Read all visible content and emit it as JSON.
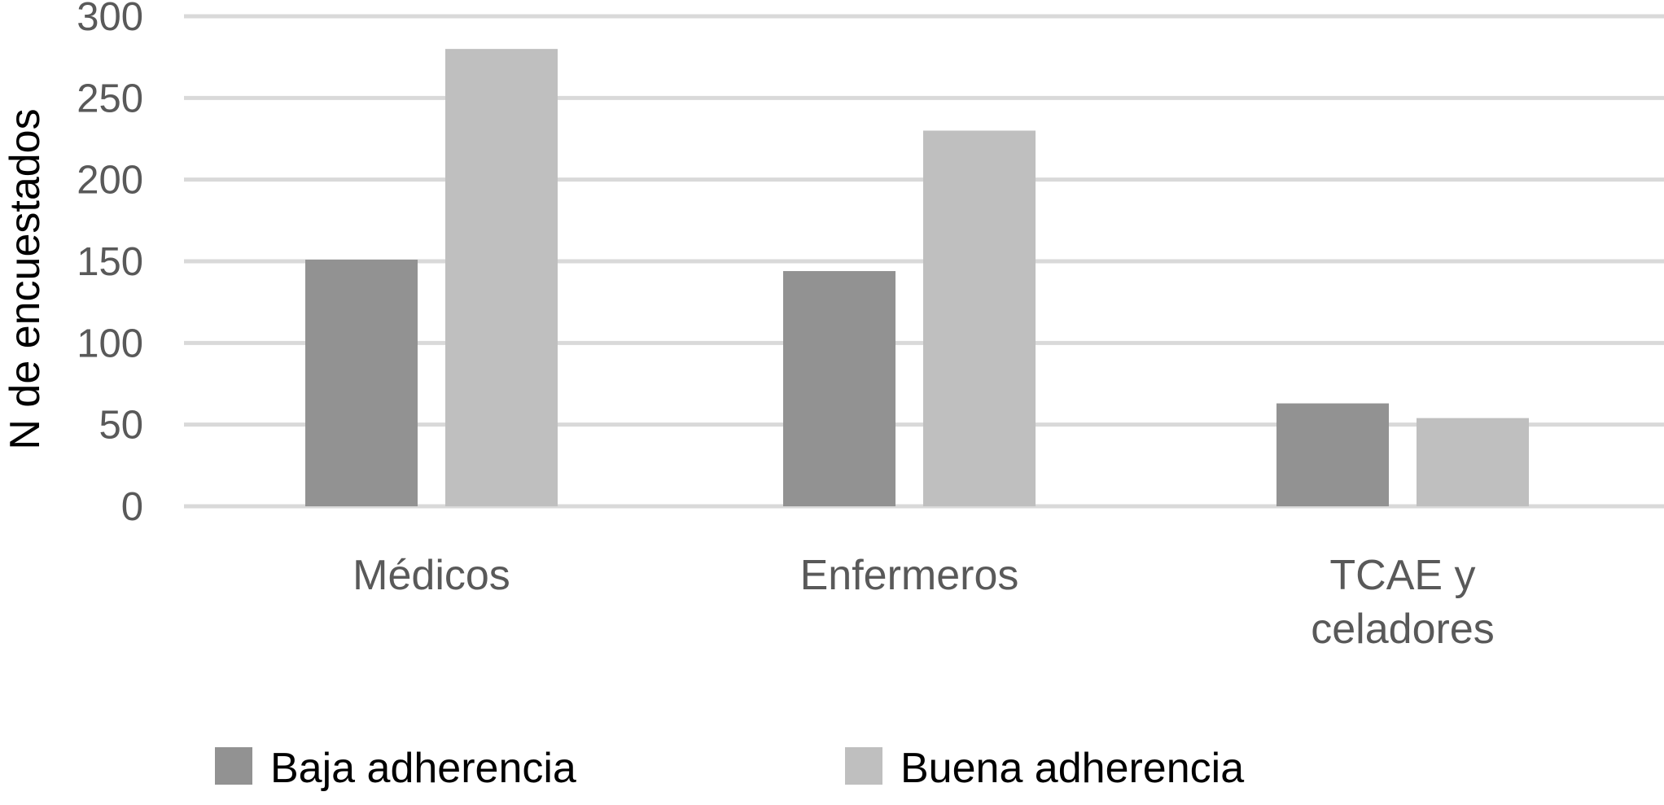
{
  "chart_data": {
    "type": "bar",
    "title": "",
    "xlabel": "",
    "ylabel": "N de encuestados",
    "ylim": [
      0,
      300
    ],
    "yticks": [
      0,
      50,
      100,
      150,
      200,
      250,
      300
    ],
    "grid": true,
    "legend_position": "bottom",
    "categories": [
      [
        "Médicos"
      ],
      [
        "Enfermeros"
      ],
      [
        "TCAE y",
        "celadores"
      ]
    ],
    "series": [
      {
        "name": "Baja adherencia",
        "color": "#929292",
        "values": [
          151,
          144,
          63
        ]
      },
      {
        "name": "Buena adherencia",
        "color": "#bfbfbf",
        "values": [
          280,
          230,
          54
        ]
      }
    ],
    "gridline_color": "#d9d9d9"
  }
}
